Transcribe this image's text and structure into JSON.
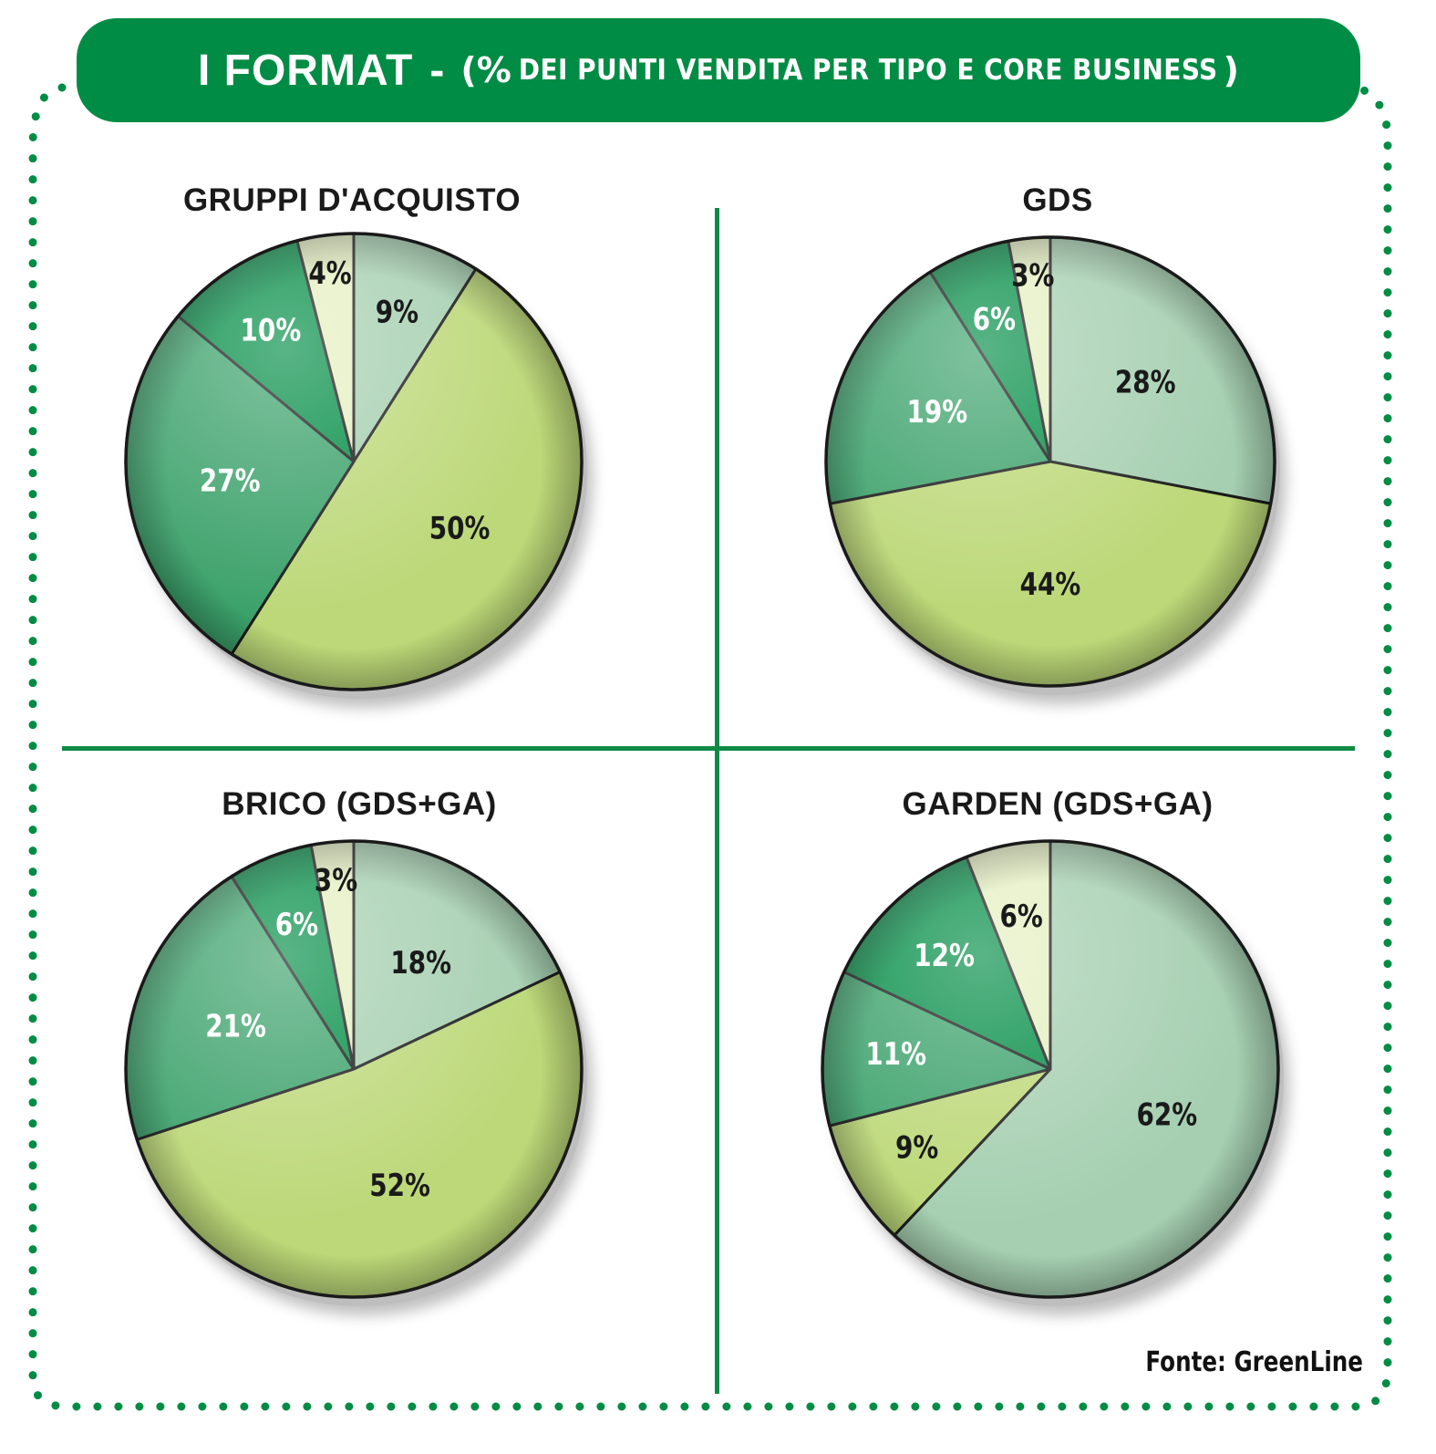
{
  "header": {
    "title": "I FORMAT",
    "dash": "-",
    "subtitle_open": "(%",
    "subtitle": "DEI PUNTI VENDITA PER TIPO E CORE BUSINESS",
    "subtitle_close": ")"
  },
  "source": "Fonte: GreenLine",
  "colors": {
    "frame": "#008c44",
    "light_teal": "#a5cfb0",
    "lime": "#bcd878",
    "medium_green": "#3ba16a",
    "dark_green": "#008c44",
    "pale": "#e4efc0"
  },
  "chart_data": [
    {
      "type": "pie",
      "title": "GRUPPI D'ACQUISTO",
      "slices": [
        {
          "label": "9%",
          "value": 9,
          "color": "#a5cfb0",
          "text_color": "#1a1a1a"
        },
        {
          "label": "50%",
          "value": 50,
          "color": "#bcd878",
          "text_color": "#1a1a1a"
        },
        {
          "label": "27%",
          "value": 27,
          "color": "#3ba16a",
          "text_color": "#ffffff"
        },
        {
          "label": "10%",
          "value": 10,
          "color": "#008c44",
          "text_color": "#ffffff"
        },
        {
          "label": "4%",
          "value": 4,
          "color": "#e4efc0",
          "text_color": "#1a1a1a"
        }
      ]
    },
    {
      "type": "pie",
      "title": "GDS",
      "slices": [
        {
          "label": "28%",
          "value": 28,
          "color": "#a5cfb0",
          "text_color": "#1a1a1a"
        },
        {
          "label": "44%",
          "value": 44,
          "color": "#bcd878",
          "text_color": "#1a1a1a"
        },
        {
          "label": "19%",
          "value": 19,
          "color": "#3ba16a",
          "text_color": "#ffffff"
        },
        {
          "label": "6%",
          "value": 6,
          "color": "#008c44",
          "text_color": "#ffffff"
        },
        {
          "label": "3%",
          "value": 3,
          "color": "#e4efc0",
          "text_color": "#1a1a1a"
        }
      ]
    },
    {
      "type": "pie",
      "title": "BRICO (GDS+GA)",
      "slices": [
        {
          "label": "18%",
          "value": 18,
          "color": "#a5cfb0",
          "text_color": "#1a1a1a"
        },
        {
          "label": "52%",
          "value": 52,
          "color": "#bcd878",
          "text_color": "#1a1a1a"
        },
        {
          "label": "21%",
          "value": 21,
          "color": "#3ba16a",
          "text_color": "#ffffff"
        },
        {
          "label": "6%",
          "value": 6,
          "color": "#008c44",
          "text_color": "#ffffff"
        },
        {
          "label": "3%",
          "value": 3,
          "color": "#e4efc0",
          "text_color": "#1a1a1a"
        }
      ]
    },
    {
      "type": "pie",
      "title": "GARDEN (GDS+GA)",
      "slices": [
        {
          "label": "62%",
          "value": 62,
          "color": "#a5cfb0",
          "text_color": "#1a1a1a"
        },
        {
          "label": "9%",
          "value": 9,
          "color": "#bcd878",
          "text_color": "#1a1a1a"
        },
        {
          "label": "11%",
          "value": 11,
          "color": "#3ba16a",
          "text_color": "#ffffff"
        },
        {
          "label": "12%",
          "value": 12,
          "color": "#008c44",
          "text_color": "#ffffff"
        },
        {
          "label": "6%",
          "value": 6,
          "color": "#e4efc0",
          "text_color": "#1a1a1a"
        }
      ]
    }
  ]
}
